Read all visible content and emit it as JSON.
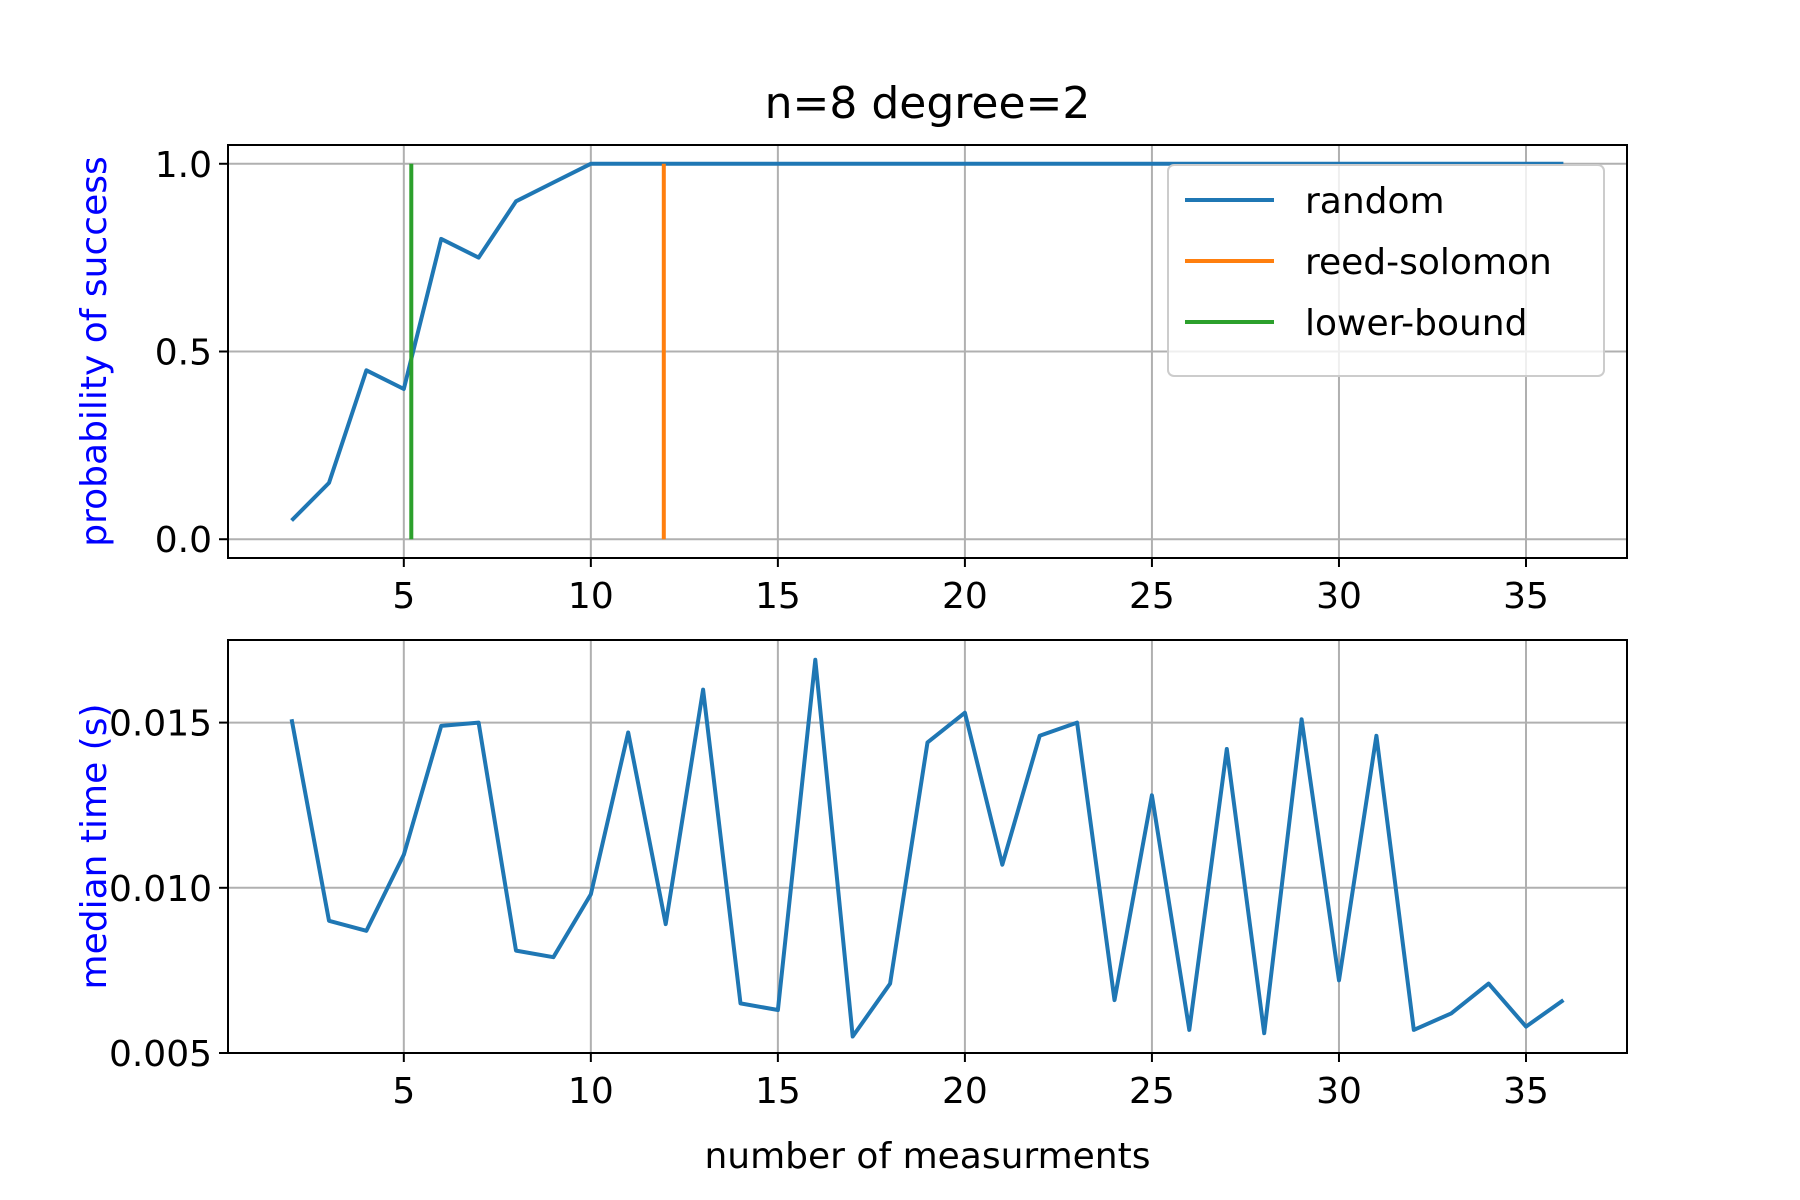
{
  "chart_data": [
    {
      "type": "line",
      "title": "n=8 degree=2",
      "xlabel": "",
      "ylabel": "probability of success",
      "ylabel_color": "#0000ff",
      "xlim": [
        0.3,
        37.7
      ],
      "ylim": [
        -0.05,
        1.05
      ],
      "xticks": [
        5,
        10,
        15,
        20,
        25,
        30,
        35
      ],
      "yticks": [
        0.0,
        0.5,
        1.0
      ],
      "ytick_labels": [
        "0.0",
        "0.5",
        "1.0"
      ],
      "grid": true,
      "legend_position": "upper-right",
      "series": [
        {
          "name": "random",
          "color": "#1f77b4",
          "x": [
            2,
            3,
            4,
            5,
            6,
            7,
            8,
            9,
            10,
            11,
            12,
            13,
            14,
            15,
            16,
            17,
            18,
            19,
            20,
            21,
            22,
            23,
            24,
            25,
            26,
            27,
            28,
            29,
            30,
            31,
            32,
            33,
            34,
            35,
            36
          ],
          "y": [
            0.05,
            0.15,
            0.45,
            0.4,
            0.8,
            0.75,
            0.9,
            0.95,
            1.0,
            1.0,
            1.0,
            1.0,
            1.0,
            1.0,
            1.0,
            1.0,
            1.0,
            1.0,
            1.0,
            1.0,
            1.0,
            1.0,
            1.0,
            1.0,
            1.0,
            1.0,
            1.0,
            1.0,
            1.0,
            1.0,
            1.0,
            1.0,
            1.0,
            1.0,
            1.0
          ]
        },
        {
          "name": "reed-solomon",
          "color": "#ff7f0e",
          "x": [
            11.95,
            11.95
          ],
          "y": [
            0.0,
            1.0
          ]
        },
        {
          "name": "lower-bound",
          "color": "#2ca02c",
          "x": [
            5.2,
            5.2
          ],
          "y": [
            0.0,
            1.0
          ]
        }
      ]
    },
    {
      "type": "line",
      "title": "",
      "xlabel": "number of measurments",
      "ylabel": "median time (s)",
      "ylabel_color": "#0000ff",
      "xlim": [
        0.3,
        37.7
      ],
      "ylim": [
        0.005,
        0.0175
      ],
      "xticks": [
        5,
        10,
        15,
        20,
        25,
        30,
        35
      ],
      "yticks": [
        0.005,
        0.01,
        0.015
      ],
      "ytick_labels": [
        "0.005",
        "0.010",
        "0.015"
      ],
      "grid": true,
      "series": [
        {
          "color": "#1f77b4",
          "x": [
            2,
            3,
            4,
            5,
            6,
            7,
            8,
            9,
            10,
            11,
            12,
            13,
            14,
            15,
            16,
            17,
            18,
            19,
            20,
            21,
            22,
            23,
            24,
            25,
            26,
            27,
            28,
            29,
            30,
            31,
            32,
            33,
            34,
            35,
            36
          ],
          "y": [
            0.0151,
            0.009,
            0.0087,
            0.011,
            0.0149,
            0.015,
            0.0081,
            0.0079,
            0.0098,
            0.0147,
            0.0089,
            0.016,
            0.0065,
            0.0063,
            0.0169,
            0.0055,
            0.0071,
            0.0144,
            0.0153,
            0.0107,
            0.0146,
            0.015,
            0.0066,
            0.0128,
            0.0057,
            0.0142,
            0.0056,
            0.0151,
            0.0072,
            0.0146,
            0.0057,
            0.0062,
            0.0071,
            0.0058,
            0.0066
          ]
        }
      ]
    }
  ]
}
